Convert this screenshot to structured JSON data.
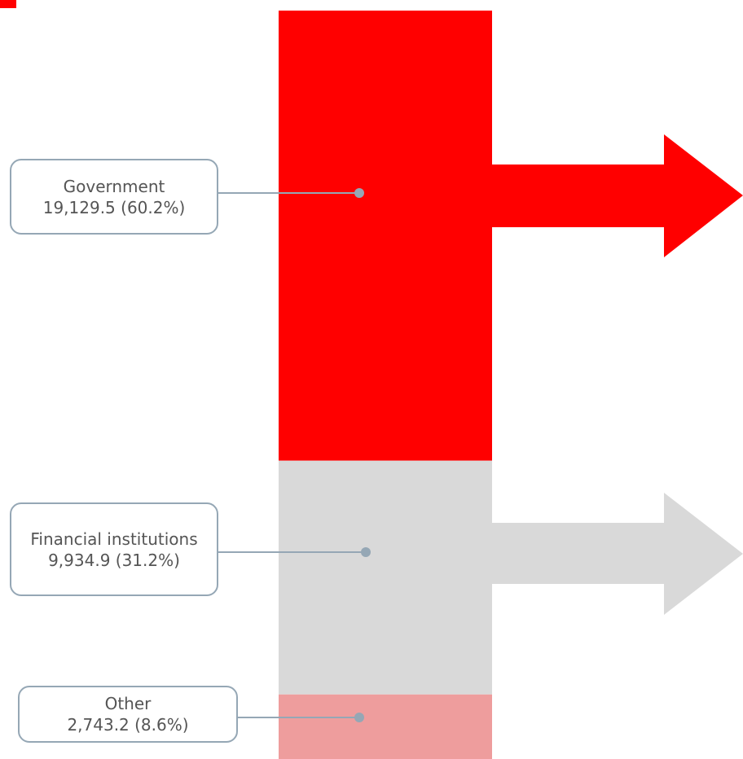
{
  "chart_data": {
    "type": "stacked_bar",
    "series": [
      {
        "name": "Government",
        "color": "#ff0000",
        "values": [
          19129.5
        ],
        "value_labels": [
          "19,129.5 (60.2%)"
        ]
      },
      {
        "name": "Financial institutions",
        "color": "#d9d9d9",
        "values": [
          9934.9
        ],
        "value_labels": [
          "9,934.9 (31.2%)"
        ]
      },
      {
        "name": "Other",
        "color": "#ee9d9d",
        "values": [
          2743.2
        ],
        "value_labels": [
          "2,743.2 (8.6%)"
        ]
      }
    ]
  }
}
